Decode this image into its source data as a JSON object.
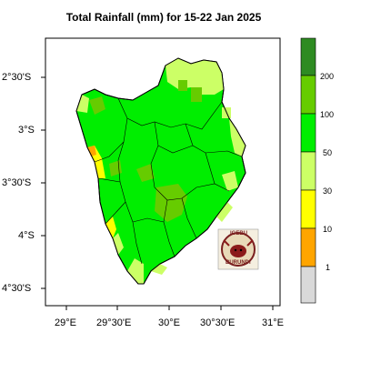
{
  "title": "Total Rainfall (mm) for 15-22 Jan 2025",
  "axes": {
    "x_ticks": [
      "29°E",
      "29°30'E",
      "30°E",
      "30°30'E",
      "31°E"
    ],
    "y_ticks": [
      "2°30'S",
      "3°S",
      "3°30'S",
      "4°S",
      "4°30'S"
    ]
  },
  "colorbar": {
    "labels": [
      "200",
      "100",
      "50",
      "30",
      "10",
      "1"
    ],
    "colors": [
      "#2e8b22",
      "#66cc00",
      "#00ee00",
      "#ccff66",
      "#ffff00",
      "#ffa500",
      "#d9d9d9"
    ]
  },
  "logo": {
    "text_top": "IGEBU",
    "text_bottom": "BURUNDI"
  },
  "map": {
    "region": "Burundi",
    "colors": {
      "land_base": "#00ee00",
      "light_green": "#ccff66",
      "mid_green": "#66cc00",
      "yellow": "#ffff00",
      "orange": "#ffa500",
      "border": "#000000"
    }
  }
}
